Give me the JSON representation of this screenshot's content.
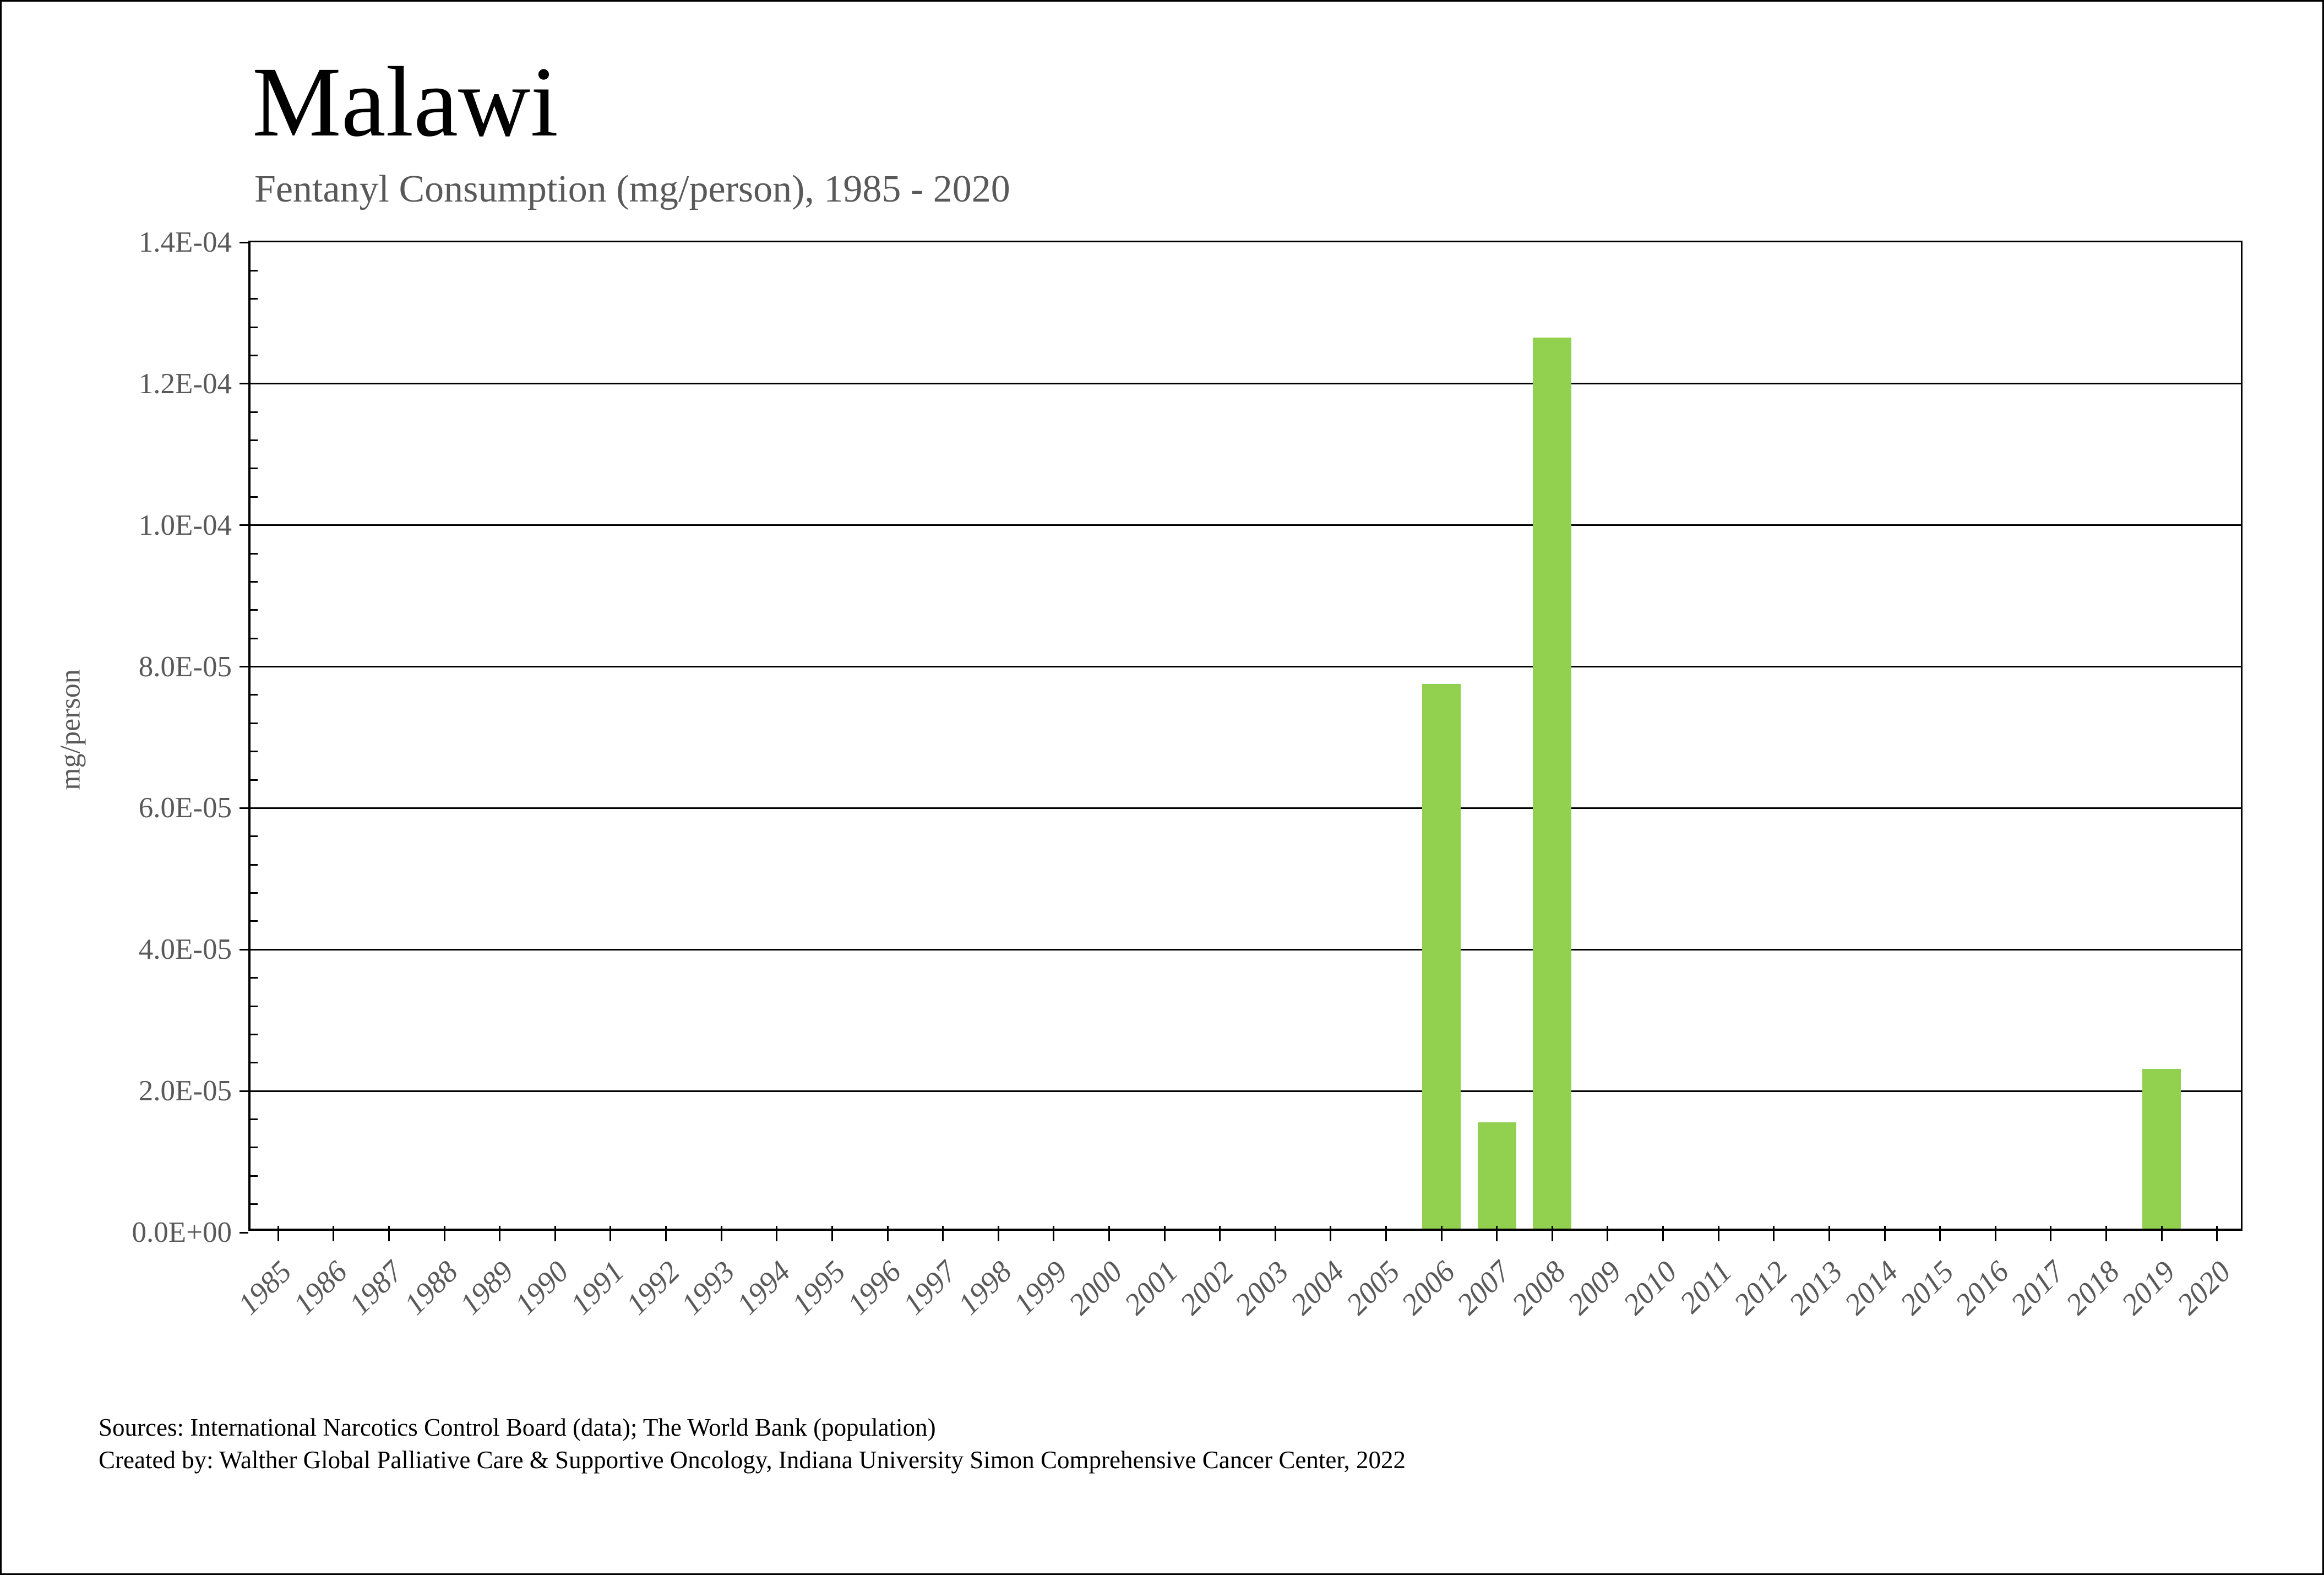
{
  "header": {
    "title": "Malawi",
    "subtitle": "Fentanyl Consumption (mg/person), 1985 - 2020"
  },
  "chart_data": {
    "type": "bar",
    "title": "Malawi",
    "subtitle": "Fentanyl Consumption (mg/person), 1985 - 2020",
    "xlabel": "",
    "ylabel": "mg/person",
    "ylim": [
      0,
      0.00014
    ],
    "ytick_step": 2e-05,
    "yminor_tick_unit": 4e-06,
    "ytick_labels": [
      "0.0E+00",
      "2.0E-05",
      "4.0E-05",
      "6.0E-05",
      "8.0E-05",
      "1.0E-04",
      "1.2E-04",
      "1.4E-04"
    ],
    "grid": true,
    "legend": false,
    "bar_color": "#92D050",
    "label_color": "#595959",
    "categories": [
      "1985",
      "1986",
      "1987",
      "1988",
      "1989",
      "1990",
      "1991",
      "1992",
      "1993",
      "1994",
      "1995",
      "1996",
      "1997",
      "1998",
      "1999",
      "2000",
      "2001",
      "2002",
      "2003",
      "2004",
      "2005",
      "2006",
      "2007",
      "2008",
      "2009",
      "2010",
      "2011",
      "2012",
      "2013",
      "2014",
      "2015",
      "2016",
      "2017",
      "2018",
      "2019",
      "2020"
    ],
    "values": [
      0,
      0,
      0,
      0,
      0,
      0,
      0,
      0,
      0,
      0,
      0,
      0,
      0,
      0,
      0,
      0,
      0,
      0,
      0,
      0,
      0,
      7.7e-05,
      1.5e-05,
      0.000126,
      0,
      0,
      0,
      0,
      0,
      0,
      0,
      0,
      0,
      0,
      2.26e-05,
      0
    ]
  },
  "footer": {
    "line1": "Sources: International Narcotics Control Board (data); The World Bank (population)",
    "line2": "Created by: Walther Global Palliative Care & Supportive Oncology, Indiana University Simon Comprehensive Cancer Center, 2022"
  }
}
